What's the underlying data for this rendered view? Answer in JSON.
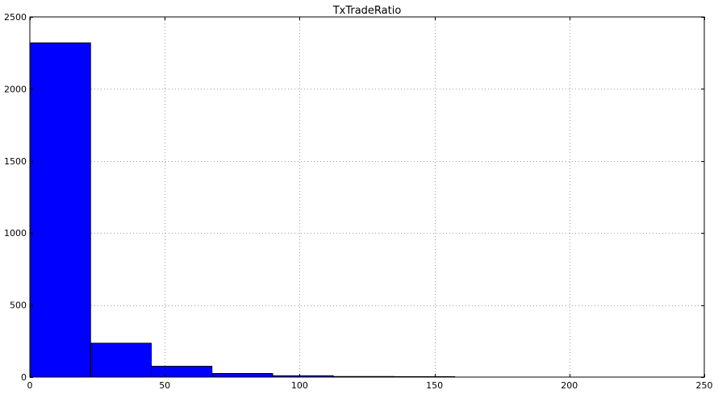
{
  "chart_data": {
    "type": "bar",
    "title": "TxTradeRatio",
    "xlabel": "",
    "ylabel": "",
    "xlim": [
      0,
      250
    ],
    "ylim": [
      0,
      2500
    ],
    "xticks": [
      0,
      50,
      100,
      150,
      200,
      250
    ],
    "yticks": [
      0,
      500,
      1000,
      1500,
      2000,
      2500
    ],
    "grid": true,
    "bar_color": "#0000ff",
    "bins": [
      {
        "x0": 0,
        "x1": 22.5,
        "count": 2320
      },
      {
        "x0": 22.5,
        "x1": 45,
        "count": 235
      },
      {
        "x0": 45,
        "x1": 67.5,
        "count": 75
      },
      {
        "x0": 67.5,
        "x1": 90,
        "count": 25
      },
      {
        "x0": 90,
        "x1": 112.5,
        "count": 9
      },
      {
        "x0": 112.5,
        "x1": 135,
        "count": 4
      },
      {
        "x0": 135,
        "x1": 157.5,
        "count": 3
      }
    ]
  }
}
